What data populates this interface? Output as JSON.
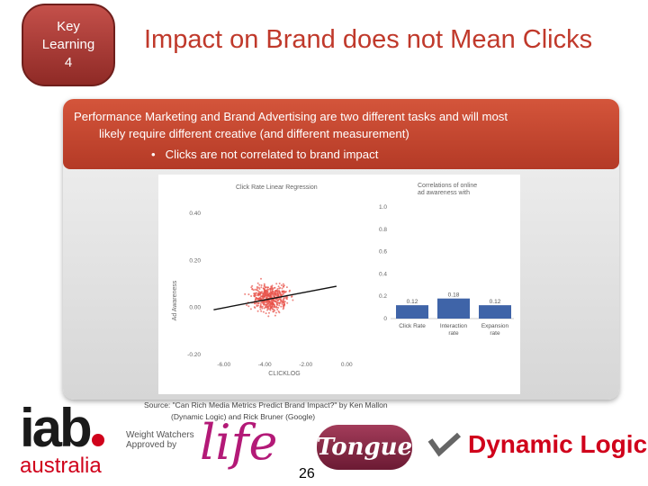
{
  "badge": {
    "line1": "Key",
    "line2": "Learning",
    "line3": "4"
  },
  "title": "Impact on Brand does not Mean Clicks",
  "banner": {
    "line1": "Performance Marketing and Brand Advertising are two different tasks and will most",
    "line2": "likely require different creative (and different measurement)",
    "bullet": "Clicks are not correlated to brand impact"
  },
  "chart_data": [
    {
      "type": "scatter",
      "title": "Click Rate   Linear Regression",
      "xlabel": "CLICKLOG",
      "ylabel": "Ad Awareness",
      "xticks": [
        "-6.00",
        "-4.00",
        "-2.00",
        "0.00"
      ],
      "yticks": [
        "-0.20",
        "0.00",
        "0.20",
        "0.40"
      ],
      "xlim": [
        -7,
        1
      ],
      "ylim": [
        -0.22,
        0.45
      ],
      "regression": {
        "x": [
          -6.5,
          -0.5
        ],
        "y": [
          -0.01,
          0.09
        ]
      }
    },
    {
      "type": "bar",
      "title": "Correlations of online ad awareness with",
      "categories": [
        "Click Rate",
        "Interaction rate",
        "Expansion rate"
      ],
      "values": [
        0.12,
        0.18,
        0.12
      ],
      "labels": [
        "0.12",
        "0.18",
        "0.12"
      ],
      "yticks": [
        "0",
        "0.2",
        "0.4",
        "0.6",
        "0.8",
        "1.0"
      ],
      "ylim": [
        0,
        1.0
      ],
      "bar_color": "#3f64a8"
    }
  ],
  "source": {
    "line1": "Source: \"Can Rich Media Metrics Predict Brand Impact?\" by Ken Mallon",
    "line2": "(Dynamic Logic) and Rick Bruner (Google)"
  },
  "logos": {
    "iab": "iab",
    "iab_sub": "australia",
    "weightwatchers": "Weight Watchers",
    "approved": "Approved by",
    "life": "life",
    "tongue": "Tongue",
    "dynamic_logic": "Dynamic Logic"
  },
  "page_number": "26",
  "colors": {
    "accent": "#c0392b",
    "banner": "#c8462f",
    "iab_red": "#d0021b",
    "scatter": "#e8534a"
  }
}
